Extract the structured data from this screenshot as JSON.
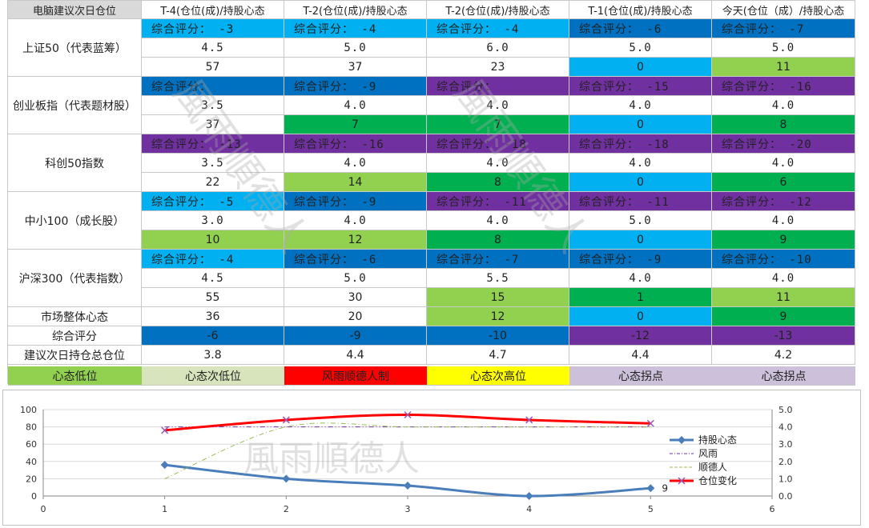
{
  "colors": {
    "lightblue": "#00b0f0",
    "darkblue": "#0070c0",
    "purple": "#7030a0",
    "green": "#00b050",
    "lightgreen": "#92d050",
    "white": "#ffffff",
    "red": "#ff0000",
    "yellow": "#ffff00",
    "palegreen": "#d8e4bc",
    "lavender": "#ccc0da"
  },
  "header": [
    "电脑建议次日仓位",
    "T-4(仓位(成)/持股心态",
    "T-2(仓位(成)/持股心态",
    "T-2(仓位(成)/持股心态",
    "T-1(仓位(成)/持股心态",
    "今天(仓位（成）/持股心态"
  ],
  "indices": [
    {
      "name": "上证50（代表蓝筹）",
      "cells": [
        {
          "score": "综合评分： -3",
          "score_color": "lightblue",
          "pos": "4.5",
          "mood": "57",
          "mood_color": "white"
        },
        {
          "score": "综合评分： -4",
          "score_color": "lightblue",
          "pos": "5.0",
          "mood": "37",
          "mood_color": "white"
        },
        {
          "score": "综合评分： -4",
          "score_color": "lightblue",
          "pos": "6.0",
          "mood": "23",
          "mood_color": "white"
        },
        {
          "score": "综合评分： -6",
          "score_color": "darkblue",
          "pos": "5.0",
          "mood": "0",
          "mood_color": "lightblue"
        },
        {
          "score": "综合评分： -7",
          "score_color": "darkblue",
          "pos": "5.0",
          "mood": "11",
          "mood_color": "lightgreen"
        }
      ]
    },
    {
      "name": "创业板指（代表题材股）",
      "cells": [
        {
          "score": "综合评分：",
          "score_color": "darkblue",
          "pos": "3.5",
          "mood": "37",
          "mood_color": "white"
        },
        {
          "score": "综合评分： -9",
          "score_color": "darkblue",
          "pos": "4.0",
          "mood": "7",
          "mood_color": "green"
        },
        {
          "score": "综合评分：",
          "score_color": "purple",
          "pos": "4.0",
          "mood": "7",
          "mood_color": "green"
        },
        {
          "score": "综合评分： -15",
          "score_color": "purple",
          "pos": "4.0",
          "mood": "0",
          "mood_color": "lightblue"
        },
        {
          "score": "综合评分： -16",
          "score_color": "purple",
          "pos": "4.0",
          "mood": "8",
          "mood_color": "green"
        }
      ]
    },
    {
      "name": "科创50指数",
      "cells": [
        {
          "score": "综合评分： -13",
          "score_color": "purple",
          "pos": "3.5",
          "mood": "22",
          "mood_color": "white"
        },
        {
          "score": "综合评分： -16",
          "score_color": "purple",
          "pos": "4.0",
          "mood": "14",
          "mood_color": "lightgreen"
        },
        {
          "score": "综合评分： -18",
          "score_color": "purple",
          "pos": "4.0",
          "mood": "8",
          "mood_color": "green"
        },
        {
          "score": "综合评分： -18",
          "score_color": "purple",
          "pos": "4.0",
          "mood": "0",
          "mood_color": "lightblue"
        },
        {
          "score": "综合评分： -20",
          "score_color": "purple",
          "pos": "4.0",
          "mood": "6",
          "mood_color": "green"
        }
      ]
    },
    {
      "name": "中小100（成长股）",
      "cells": [
        {
          "score": "综合评分： -5",
          "score_color": "lightblue",
          "pos": "3.0",
          "mood": "10",
          "mood_color": "lightgreen"
        },
        {
          "score": "综合评分： -9",
          "score_color": "darkblue",
          "pos": "4.0",
          "mood": "12",
          "mood_color": "lightgreen"
        },
        {
          "score": "综合评分： -11",
          "score_color": "purple",
          "pos": "4.0",
          "mood": "8",
          "mood_color": "green"
        },
        {
          "score": "综合评分： -11",
          "score_color": "purple",
          "pos": "5.0",
          "mood": "0",
          "mood_color": "lightblue"
        },
        {
          "score": "综合评分： -12",
          "score_color": "purple",
          "pos": "4.0",
          "mood": "9",
          "mood_color": "green"
        }
      ]
    },
    {
      "name": "沪深300（代表指数）",
      "cells": [
        {
          "score": "综合评分： -4",
          "score_color": "lightblue",
          "pos": "4.5",
          "mood": "55",
          "mood_color": "white"
        },
        {
          "score": "综合评分： -6",
          "score_color": "darkblue",
          "pos": "5.0",
          "mood": "30",
          "mood_color": "white"
        },
        {
          "score": "综合评分： -7",
          "score_color": "darkblue",
          "pos": "5.5",
          "mood": "15",
          "mood_color": "lightgreen"
        },
        {
          "score": "综合评分： -9",
          "score_color": "darkblue",
          "pos": "4.0",
          "mood": "1",
          "mood_color": "green"
        },
        {
          "score": "综合评分： -10",
          "score_color": "darkblue",
          "pos": "4.0",
          "mood": "11",
          "mood_color": "lightgreen"
        }
      ]
    }
  ],
  "summary": [
    {
      "label": "市场整体心态",
      "values": [
        {
          "v": "36",
          "c": "white"
        },
        {
          "v": "20",
          "c": "white"
        },
        {
          "v": "12",
          "c": "lightgreen"
        },
        {
          "v": "0",
          "c": "lightblue"
        },
        {
          "v": "9",
          "c": "green"
        }
      ]
    },
    {
      "label": "综合评分",
      "values": [
        {
          "v": "-6",
          "c": "darkblue"
        },
        {
          "v": "-9",
          "c": "darkblue"
        },
        {
          "v": "-10",
          "c": "darkblue"
        },
        {
          "v": "-12",
          "c": "purple"
        },
        {
          "v": "-13",
          "c": "purple"
        }
      ]
    },
    {
      "label": "建议次日持仓总仓位",
      "values": [
        {
          "v": "3.8",
          "c": "white"
        },
        {
          "v": "4.4",
          "c": "white"
        },
        {
          "v": "4.7",
          "c": "white"
        },
        {
          "v": "4.4",
          "c": "white"
        },
        {
          "v": "4.2",
          "c": "white"
        }
      ]
    }
  ],
  "legend_row": [
    {
      "label": "心态低位",
      "c": "lightgreen",
      "text": "#222222"
    },
    {
      "label": "心态次低位",
      "c": "palegreen",
      "text": "#222222"
    },
    {
      "label": "风雨顺德人制",
      "c": "red",
      "text": "#222222"
    },
    {
      "label": "心态次高位",
      "c": "yellow",
      "text": "#222222"
    },
    {
      "label": "心态拐点",
      "c": "lavender",
      "text": "#222222"
    },
    {
      "label": "心态拐点",
      "c": "lavender",
      "text": "#222222"
    }
  ],
  "watermark": "風雨順德人",
  "chart_data": {
    "type": "line",
    "x": [
      1,
      2,
      3,
      4,
      5
    ],
    "xlim": [
      0,
      6
    ],
    "xticks": [
      "0",
      "1",
      "2",
      "3",
      "4",
      "5",
      "6"
    ],
    "ylim": [
      0,
      100
    ],
    "yticks": [
      "0",
      "20",
      "40",
      "60",
      "80",
      "100"
    ],
    "y2lim": [
      0,
      5
    ],
    "y2ticks": [
      "0.0",
      "1.0",
      "2.0",
      "3.0",
      "4.0",
      "5.0"
    ],
    "series": [
      {
        "name": "持股心态",
        "axis": "left",
        "color": "#4a7ebb",
        "values": [
          36,
          20,
          12,
          0,
          9
        ]
      },
      {
        "name": "风雨",
        "axis": "left",
        "color": "#7030a0",
        "values": [
          80,
          80,
          80,
          80,
          80
        ]
      },
      {
        "name": "顺德人",
        "axis": "left",
        "color": "#9bbb59",
        "values": [
          20,
          80,
          80,
          80,
          80
        ]
      },
      {
        "name": "仓位变化",
        "axis": "right",
        "color": "#ff0000",
        "values": [
          3.8,
          4.4,
          4.7,
          4.4,
          4.2
        ]
      }
    ],
    "data_label": "9",
    "legend": "right"
  }
}
